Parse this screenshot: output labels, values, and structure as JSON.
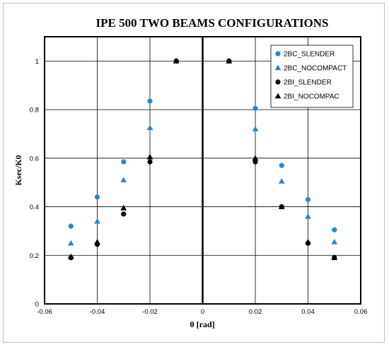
{
  "chart_data": {
    "type": "scatter",
    "title": "IPE 500 TWO  BEAMS CONFIGURATIONS",
    "xlabel": "θ [rad]",
    "ylabel": "Ksec/K0",
    "xlim": [
      -0.06,
      0.06
    ],
    "ylim": [
      0,
      1.1
    ],
    "xticks": [
      -0.06,
      -0.04,
      -0.02,
      0,
      0.02,
      0.04,
      0.06
    ],
    "xtick_labels": [
      "-0.06",
      "-0.04",
      "-0.02",
      "0",
      "0.02",
      "0.04",
      "0.06"
    ],
    "yticks": [
      0,
      0.2,
      0.4,
      0.6,
      0.8,
      1
    ],
    "ytick_labels": [
      "0",
      "0.2",
      "0.4",
      "0.6",
      "0.8",
      "1"
    ],
    "grid": true,
    "legend_position": "top-right",
    "series": [
      {
        "name": "2BC_SLENDER",
        "marker": "circle",
        "color": "#2e86c1",
        "x": [
          -0.05,
          -0.04,
          -0.03,
          -0.02,
          -0.01,
          0.01,
          0.02,
          0.03,
          0.04,
          0.05
        ],
        "y": [
          0.32,
          0.44,
          0.585,
          0.835,
          1.0,
          1.0,
          0.805,
          0.57,
          0.43,
          0.305
        ]
      },
      {
        "name": "2BC_NOCOMPACT",
        "marker": "triangle",
        "color": "#2e86c1",
        "x": [
          -0.05,
          -0.04,
          -0.03,
          -0.02,
          -0.01,
          0.01,
          0.02,
          0.03,
          0.04,
          0.05
        ],
        "y": [
          0.25,
          0.34,
          0.51,
          0.725,
          1.0,
          1.0,
          0.72,
          0.505,
          0.36,
          0.255
        ]
      },
      {
        "name": "2BI_SLENDER",
        "marker": "circle",
        "color": "#000000",
        "x": [
          -0.05,
          -0.04,
          -0.03,
          -0.02,
          -0.01,
          0.01,
          0.02,
          0.03,
          0.04,
          0.05
        ],
        "y": [
          0.19,
          0.245,
          0.37,
          0.585,
          1.0,
          1.0,
          0.585,
          0.4,
          0.25,
          0.19
        ]
      },
      {
        "name": "2BI_NOCOMPAC",
        "marker": "triangle",
        "color": "#000000",
        "x": [
          -0.05,
          -0.04,
          -0.03,
          -0.02,
          -0.01,
          0.01,
          0.02,
          0.03,
          0.04,
          0.05
        ],
        "y": [
          0.195,
          0.255,
          0.395,
          0.605,
          1.0,
          1.0,
          0.6,
          0.4,
          0.255,
          0.19
        ]
      }
    ]
  }
}
